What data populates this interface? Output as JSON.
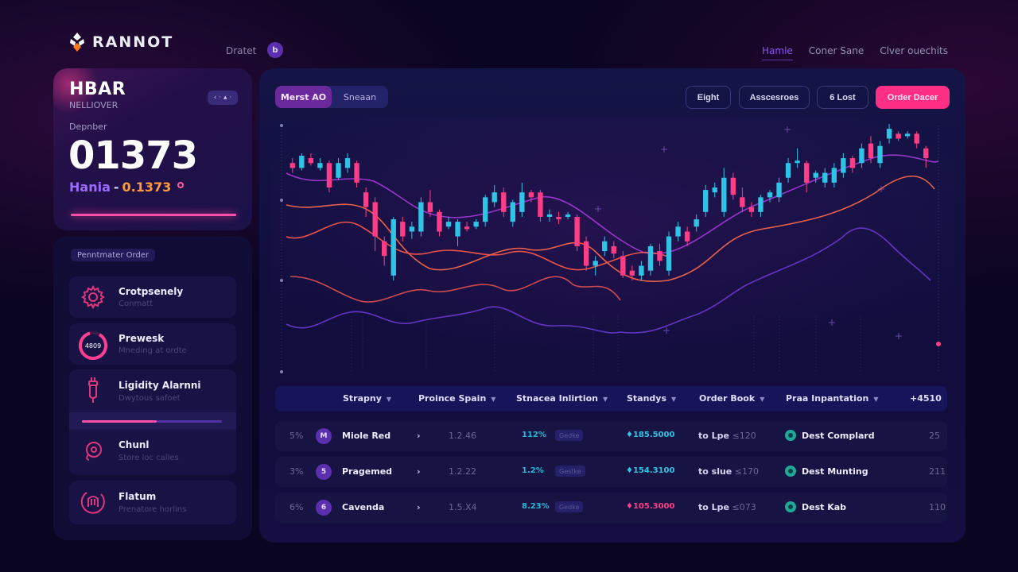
{
  "header": {
    "brand": "RANNOT",
    "left_link": "Dratet",
    "avatar_letter": "b",
    "nav": [
      {
        "label": "Hamle",
        "active": true
      },
      {
        "label": "Coner Sane",
        "active": false
      },
      {
        "label": "Clver ouechits",
        "active": false
      }
    ]
  },
  "ticker_card": {
    "symbol": "HBAR",
    "subtitle": "NELLIOVER",
    "chip": "‹ ‧ ▴ ‧",
    "label": "Depnber",
    "value": "01373",
    "pair_name": "Hania",
    "pair_sep": "-",
    "pair_value": "0.1373"
  },
  "sidebar": {
    "section_label": "Penntmater Order",
    "items": [
      {
        "title": "Crotpsenely",
        "subtitle": "Conmatt",
        "icon": "gear-icon"
      },
      {
        "title": "Prewesk",
        "subtitle": "Mneding at ordte",
        "icon": "ring-progress-icon",
        "ring_label": "4809"
      },
      {
        "title": "Ligidity Alarnni",
        "subtitle": "Dwytous safoet",
        "icon": "plug-icon",
        "progress": 53
      },
      {
        "title": "Chunl",
        "subtitle": "Store loc calles",
        "icon": "pin-icon"
      },
      {
        "title": "Flatum",
        "subtitle": "Prenatore horlins",
        "icon": "gauge-icon"
      }
    ]
  },
  "toolbar": {
    "segments": [
      {
        "label": "Merst AO",
        "active": true
      },
      {
        "label": "Sneaan",
        "active": false
      }
    ],
    "buttons": [
      "Eight",
      "Asscesroes",
      "6 Lost"
    ],
    "primary_button": "Order Dacer"
  },
  "colors": {
    "up": "#2ec4e6",
    "down": "#ff3d86",
    "accent": "#ff2f86",
    "ma_orange": "#ff6a4a",
    "ma_purple": "#6a3ad0",
    "ma_violet": "#a43ad8"
  },
  "chart_data": {
    "type": "candlestick",
    "title": "",
    "xlabel": "",
    "ylabel": "",
    "grid": false,
    "candles_note": "approximate, pixel-estimated OHLC in relative price units (0 bottom, 100 top)",
    "candles": [
      {
        "o": 86,
        "c": 84,
        "h": 88,
        "l": 82
      },
      {
        "o": 84,
        "c": 89,
        "h": 90,
        "l": 83
      },
      {
        "o": 88,
        "c": 86,
        "h": 90,
        "l": 85
      },
      {
        "o": 84,
        "c": 86,
        "h": 88,
        "l": 83
      },
      {
        "o": 86,
        "c": 76,
        "h": 87,
        "l": 74
      },
      {
        "o": 80,
        "c": 86,
        "h": 88,
        "l": 79
      },
      {
        "o": 84,
        "c": 88,
        "h": 90,
        "l": 82
      },
      {
        "o": 86,
        "c": 78,
        "h": 87,
        "l": 76
      },
      {
        "o": 74,
        "c": 68,
        "h": 76,
        "l": 64
      },
      {
        "o": 70,
        "c": 56,
        "h": 72,
        "l": 50
      },
      {
        "o": 54,
        "c": 48,
        "h": 56,
        "l": 44
      },
      {
        "o": 40,
        "c": 63,
        "h": 64,
        "l": 38
      },
      {
        "o": 62,
        "c": 56,
        "h": 64,
        "l": 54
      },
      {
        "o": 58,
        "c": 60,
        "h": 62,
        "l": 55
      },
      {
        "o": 58,
        "c": 70,
        "h": 72,
        "l": 56
      },
      {
        "o": 70,
        "c": 66,
        "h": 75,
        "l": 64
      },
      {
        "o": 66,
        "c": 58,
        "h": 67,
        "l": 56
      },
      {
        "o": 60,
        "c": 62,
        "h": 64,
        "l": 59
      },
      {
        "o": 56,
        "c": 62,
        "h": 63,
        "l": 52
      },
      {
        "o": 60,
        "c": 59,
        "h": 62,
        "l": 58
      },
      {
        "o": 60,
        "c": 62,
        "h": 63,
        "l": 59
      },
      {
        "o": 62,
        "c": 72,
        "h": 73,
        "l": 60
      },
      {
        "o": 70,
        "c": 74,
        "h": 77,
        "l": 68
      },
      {
        "o": 74,
        "c": 66,
        "h": 76,
        "l": 64
      },
      {
        "o": 62,
        "c": 70,
        "h": 71,
        "l": 60
      },
      {
        "o": 66,
        "c": 74,
        "h": 78,
        "l": 64
      },
      {
        "o": 74,
        "c": 72,
        "h": 75,
        "l": 70
      },
      {
        "o": 74,
        "c": 64,
        "h": 75,
        "l": 62
      },
      {
        "o": 64,
        "c": 65,
        "h": 67,
        "l": 62
      },
      {
        "o": 64,
        "c": 63,
        "h": 66,
        "l": 61
      },
      {
        "o": 64,
        "c": 65,
        "h": 66,
        "l": 63
      },
      {
        "o": 64,
        "c": 52,
        "h": 65,
        "l": 50
      },
      {
        "o": 54,
        "c": 44,
        "h": 56,
        "l": 42
      },
      {
        "o": 44,
        "c": 46,
        "h": 48,
        "l": 40
      },
      {
        "o": 50,
        "c": 54,
        "h": 56,
        "l": 48
      },
      {
        "o": 52,
        "c": 49,
        "h": 54,
        "l": 47
      },
      {
        "o": 48,
        "c": 40,
        "h": 50,
        "l": 39
      },
      {
        "o": 42,
        "c": 40,
        "h": 44,
        "l": 38
      },
      {
        "o": 40,
        "c": 44,
        "h": 46,
        "l": 38
      },
      {
        "o": 42,
        "c": 52,
        "h": 53,
        "l": 40
      },
      {
        "o": 50,
        "c": 46,
        "h": 53,
        "l": 44
      },
      {
        "o": 42,
        "c": 56,
        "h": 58,
        "l": 40
      },
      {
        "o": 56,
        "c": 60,
        "h": 62,
        "l": 54
      },
      {
        "o": 58,
        "c": 54,
        "h": 60,
        "l": 52
      },
      {
        "o": 60,
        "c": 63,
        "h": 65,
        "l": 58
      },
      {
        "o": 66,
        "c": 75,
        "h": 77,
        "l": 64
      },
      {
        "o": 74,
        "c": 76,
        "h": 78,
        "l": 72
      },
      {
        "o": 66,
        "c": 80,
        "h": 84,
        "l": 64
      },
      {
        "o": 80,
        "c": 73,
        "h": 82,
        "l": 71
      },
      {
        "o": 72,
        "c": 68,
        "h": 76,
        "l": 66
      },
      {
        "o": 68,
        "c": 66,
        "h": 70,
        "l": 64
      },
      {
        "o": 66,
        "c": 72,
        "h": 73,
        "l": 64
      },
      {
        "o": 72,
        "c": 74,
        "h": 75,
        "l": 70
      },
      {
        "o": 72,
        "c": 78,
        "h": 80,
        "l": 70
      },
      {
        "o": 80,
        "c": 86,
        "h": 88,
        "l": 78
      },
      {
        "o": 86,
        "c": 87,
        "h": 92,
        "l": 84
      },
      {
        "o": 86,
        "c": 78,
        "h": 87,
        "l": 74
      },
      {
        "o": 80,
        "c": 82,
        "h": 83,
        "l": 78
      },
      {
        "o": 78,
        "c": 82,
        "h": 84,
        "l": 76
      },
      {
        "o": 78,
        "c": 84,
        "h": 86,
        "l": 76
      },
      {
        "o": 82,
        "c": 88,
        "h": 90,
        "l": 80
      },
      {
        "o": 88,
        "c": 84,
        "h": 89,
        "l": 82
      },
      {
        "o": 86,
        "c": 92,
        "h": 94,
        "l": 84
      },
      {
        "o": 94,
        "c": 88,
        "h": 97,
        "l": 86
      },
      {
        "o": 86,
        "c": 93,
        "h": 95,
        "l": 84
      },
      {
        "o": 96,
        "c": 100,
        "h": 102,
        "l": 94
      },
      {
        "o": 98,
        "c": 96,
        "h": 99,
        "l": 95
      },
      {
        "o": 97,
        "c": 98,
        "h": 99,
        "l": 96
      },
      {
        "o": 98,
        "c": 94,
        "h": 99,
        "l": 92
      },
      {
        "o": 92,
        "c": 88,
        "h": 93,
        "l": 84
      }
    ],
    "series": [
      {
        "name": "MA violet upper",
        "color": "#a43ad8"
      },
      {
        "name": "MA orange 1",
        "color": "#ff6a4a"
      },
      {
        "name": "MA orange 2",
        "color": "#ff5a4a"
      },
      {
        "name": "MA purple lower",
        "color": "#6a3ad0"
      }
    ]
  },
  "table": {
    "columns": [
      {
        "label": "Strapny",
        "sortable": true
      },
      {
        "label": "Proince Spain",
        "sortable": true
      },
      {
        "label": "Stnacea Inlirtion",
        "sortable": true
      },
      {
        "label": "Standys",
        "sortable": true
      },
      {
        "label": "Order Book",
        "sortable": true
      },
      {
        "label": "Praa Inpantation",
        "sortable": true
      },
      {
        "label": "+4510",
        "sortable": false
      }
    ],
    "rows": [
      {
        "pct": "5%",
        "avatar": "M",
        "name": "Miole Red",
        "version": "1.2.46",
        "change": "112%",
        "tag": "Gedke",
        "price": "♦185.5000",
        "price_dir": "up",
        "to_label": "to Lpe",
        "to_value": "≤120",
        "dest": "Dest Complard",
        "count": "25"
      },
      {
        "pct": "3%",
        "avatar": "5",
        "name": "Pragemed",
        "version": "1.2.22",
        "change": "1.2%",
        "tag": "Gestke",
        "price": "♦154.3100",
        "price_dir": "up",
        "to_label": "to slue",
        "to_value": "≤170",
        "dest": "Dest Munting",
        "count": "211"
      },
      {
        "pct": "6%",
        "avatar": "6",
        "name": "Cavenda",
        "version": "1.5.X4",
        "change": "8.23%",
        "tag": "Gedke",
        "price": "♦105.3000",
        "price_dir": "down",
        "to_label": "to Lpe",
        "to_value": "≤073",
        "dest": "Dest Kab",
        "count": "110"
      }
    ]
  }
}
